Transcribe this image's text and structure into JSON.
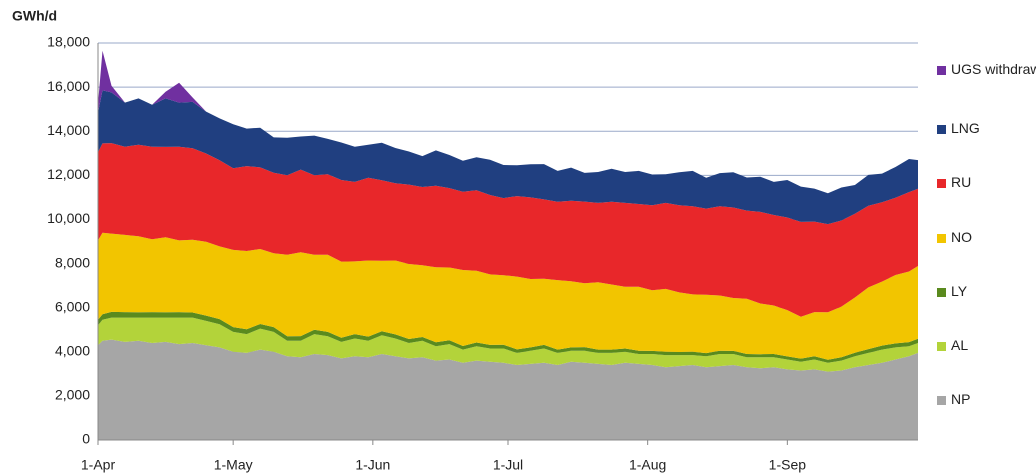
{
  "chart_data": {
    "type": "stacked-area",
    "y_label": "GWh/d",
    "x": [
      0,
      1,
      3,
      6,
      9,
      12,
      15,
      18,
      21,
      24,
      27,
      30,
      33,
      36,
      39,
      42,
      45,
      48,
      51,
      54,
      57,
      60,
      63,
      66,
      69,
      72,
      75,
      78,
      81,
      84,
      87,
      90,
      93,
      96,
      99,
      102,
      105,
      108,
      111,
      114,
      117,
      120,
      123,
      126,
      129,
      132,
      135,
      138,
      141,
      144,
      147,
      150,
      153,
      156,
      159,
      162,
      165,
      168,
      171,
      174,
      177,
      180,
      182
    ],
    "xlim": [
      0,
      182
    ],
    "xticks": [
      {
        "value": 0,
        "label": "1-Apr"
      },
      {
        "value": 30,
        "label": "1-May"
      },
      {
        "value": 61,
        "label": "1-Jun"
      },
      {
        "value": 91,
        "label": "1-Jul"
      },
      {
        "value": 122,
        "label": "1-Aug"
      },
      {
        "value": 153,
        "label": "1-Sep"
      }
    ],
    "ylim": [
      0,
      18000
    ],
    "yticks": [
      0,
      {
        "value": 2000,
        "label": "2,000"
      },
      {
        "value": 4000,
        "label": "4,000"
      },
      {
        "value": 6000,
        "label": "6,000"
      },
      {
        "value": 8000,
        "label": "8,000"
      },
      {
        "value": 10000,
        "label": "10,000"
      },
      {
        "value": 12000,
        "label": "12,000"
      },
      {
        "value": 14000,
        "label": "14,000"
      },
      {
        "value": 16000,
        "label": "16,000"
      },
      {
        "value": 18000,
        "label": "18,000"
      }
    ],
    "grid": true,
    "series": [
      {
        "name": "NP",
        "color": "#a6a6a6",
        "values": [
          4300,
          4500,
          4550,
          4450,
          4500,
          4400,
          4450,
          4350,
          4400,
          4300,
          4200,
          4000,
          3950,
          4100,
          4000,
          3800,
          3750,
          3900,
          3850,
          3700,
          3800,
          3750,
          3900,
          3800,
          3700,
          3750,
          3600,
          3650,
          3500,
          3600,
          3550,
          3500,
          3400,
          3450,
          3500,
          3400,
          3550,
          3500,
          3450,
          3400,
          3500,
          3450,
          3400,
          3300,
          3350,
          3400,
          3300,
          3350,
          3400,
          3300,
          3250,
          3300,
          3200,
          3150,
          3200,
          3100,
          3150,
          3300,
          3400,
          3500,
          3650,
          3800,
          3950
        ]
      },
      {
        "name": "AL",
        "color": "#b3d33a",
        "values": [
          900,
          950,
          1000,
          1100,
          1050,
          1150,
          1100,
          1200,
          1150,
          1100,
          1050,
          900,
          850,
          950,
          900,
          700,
          750,
          900,
          850,
          750,
          800,
          750,
          850,
          800,
          700,
          750,
          650,
          700,
          600,
          650,
          600,
          650,
          550,
          600,
          650,
          550,
          500,
          550,
          500,
          550,
          500,
          450,
          500,
          550,
          500,
          450,
          500,
          550,
          500,
          450,
          500,
          450,
          450,
          400,
          450,
          400,
          450,
          500,
          550,
          600,
          550,
          450,
          450
        ]
      },
      {
        "name": "LY",
        "color": "#5a8a1e",
        "values": [
          250,
          250,
          260,
          250,
          240,
          250,
          240,
          250,
          230,
          240,
          230,
          220,
          220,
          210,
          220,
          200,
          210,
          200,
          200,
          190,
          200,
          190,
          180,
          190,
          180,
          170,
          180,
          170,
          160,
          170,
          160,
          170,
          160,
          150,
          160,
          150,
          150,
          160,
          150,
          150,
          150,
          150,
          140,
          150,
          140,
          150,
          140,
          150,
          140,
          150,
          140,
          150,
          140,
          140,
          150,
          140,
          150,
          160,
          170,
          180,
          180,
          190,
          190
        ]
      },
      {
        "name": "NO",
        "color": "#f2c500",
        "values": [
          3600,
          3700,
          3550,
          3500,
          3450,
          3300,
          3400,
          3250,
          3300,
          3350,
          3300,
          3500,
          3550,
          3400,
          3350,
          3700,
          3800,
          3400,
          3500,
          3450,
          3300,
          3450,
          3200,
          3350,
          3400,
          3250,
          3400,
          3300,
          3450,
          3250,
          3200,
          3150,
          3300,
          3100,
          3000,
          3150,
          3000,
          2900,
          3050,
          2950,
          2800,
          2900,
          2750,
          2850,
          2700,
          2600,
          2650,
          2500,
          2400,
          2500,
          2300,
          2200,
          2100,
          1900,
          2000,
          2150,
          2300,
          2500,
          2800,
          2900,
          3100,
          3200,
          3300
        ]
      },
      {
        "name": "RU",
        "color": "#e8272a",
        "values": [
          4000,
          4050,
          4100,
          4000,
          4150,
          4200,
          4100,
          4250,
          4150,
          4000,
          3900,
          3700,
          3850,
          3700,
          3650,
          3600,
          3750,
          3600,
          3650,
          3700,
          3600,
          3750,
          3650,
          3500,
          3600,
          3550,
          3700,
          3600,
          3550,
          3650,
          3600,
          3500,
          3650,
          3700,
          3600,
          3550,
          3650,
          3700,
          3600,
          3750,
          3800,
          3750,
          3850,
          3900,
          3950,
          4000,
          3900,
          4050,
          4100,
          4000,
          4150,
          4100,
          4200,
          4300,
          4100,
          4000,
          3900,
          3800,
          3700,
          3600,
          3500,
          3600,
          3500
        ]
      },
      {
        "name": "LNG",
        "color": "#203f80",
        "values": [
          1800,
          2400,
          2300,
          2000,
          2100,
          1900,
          2200,
          2000,
          2100,
          1900,
          1900,
          2000,
          1700,
          1800,
          1600,
          1700,
          1500,
          1800,
          1600,
          1700,
          1600,
          1500,
          1700,
          1600,
          1500,
          1400,
          1600,
          1500,
          1400,
          1500,
          1600,
          1500,
          1400,
          1500,
          1600,
          1400,
          1500,
          1300,
          1400,
          1500,
          1400,
          1500,
          1400,
          1300,
          1500,
          1600,
          1400,
          1500,
          1600,
          1500,
          1600,
          1500,
          1700,
          1600,
          1500,
          1400,
          1500,
          1300,
          1400,
          1300,
          1400,
          1500,
          1300
        ]
      },
      {
        "name": "UGS withdraw",
        "color": "#7030a0",
        "values": [
          400,
          1800,
          300,
          0,
          0,
          0,
          300,
          900,
          200,
          0,
          0,
          0,
          0,
          0,
          0,
          0,
          0,
          0,
          0,
          0,
          0,
          0,
          0,
          0,
          0,
          0,
          0,
          0,
          0,
          0,
          0,
          0,
          0,
          0,
          0,
          0,
          0,
          0,
          0,
          0,
          0,
          0,
          0,
          0,
          0,
          0,
          0,
          0,
          0,
          0,
          0,
          0,
          0,
          0,
          0,
          0,
          0,
          0,
          0,
          0,
          0,
          0,
          0
        ]
      }
    ]
  }
}
